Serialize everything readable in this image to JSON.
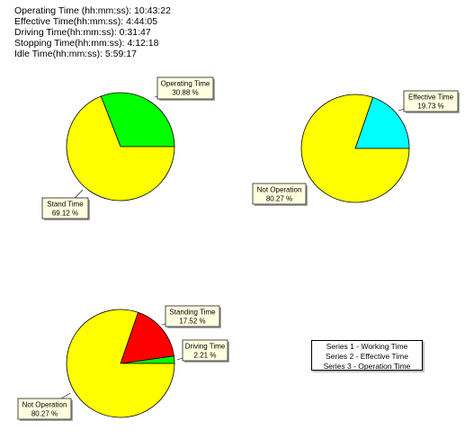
{
  "summary": [
    "Operating Time (hh:mm:ss): 10:43:22",
    "Effective Time(hh:mm:ss): 4:44:05",
    "Driving Time(hh:mm:ss): 0:31:47",
    "Stopping Time(hh:mm:ss): 4:12:18",
    "Idle Time(hh:mm:ss): 5:59:17"
  ],
  "legend": [
    "Series 1 - Working Time",
    "Series 2 - Effective Time",
    "Series 3 - Operation Time"
  ],
  "chart_data": [
    {
      "type": "pie",
      "series_label": "Series 1",
      "slices": [
        {
          "name": "Operating Time",
          "value": 30.88,
          "label": "30.88 %",
          "color": "#00ff00"
        },
        {
          "name": "Stand Time",
          "value": 69.12,
          "label": "69.12 %",
          "color": "#ffff00"
        }
      ]
    },
    {
      "type": "pie",
      "series_label": "Series 2",
      "slices": [
        {
          "name": "Effective Time",
          "value": 19.73,
          "label": "19.73 %",
          "color": "#00ffff"
        },
        {
          "name": "Not Operation",
          "value": 80.27,
          "label": "80.27 %",
          "color": "#ffff00"
        }
      ]
    },
    {
      "type": "pie",
      "series_label": "Series 3",
      "slices": [
        {
          "name": "Standing Time",
          "value": 17.52,
          "label": "17.52 %",
          "color": "#ff0000"
        },
        {
          "name": "Driving Time",
          "value": 2.21,
          "label": "2.21 %",
          "color": "#00ff00"
        },
        {
          "name": "Not Operation",
          "value": 80.27,
          "label": "80.27 %",
          "color": "#ffff00"
        }
      ]
    }
  ]
}
